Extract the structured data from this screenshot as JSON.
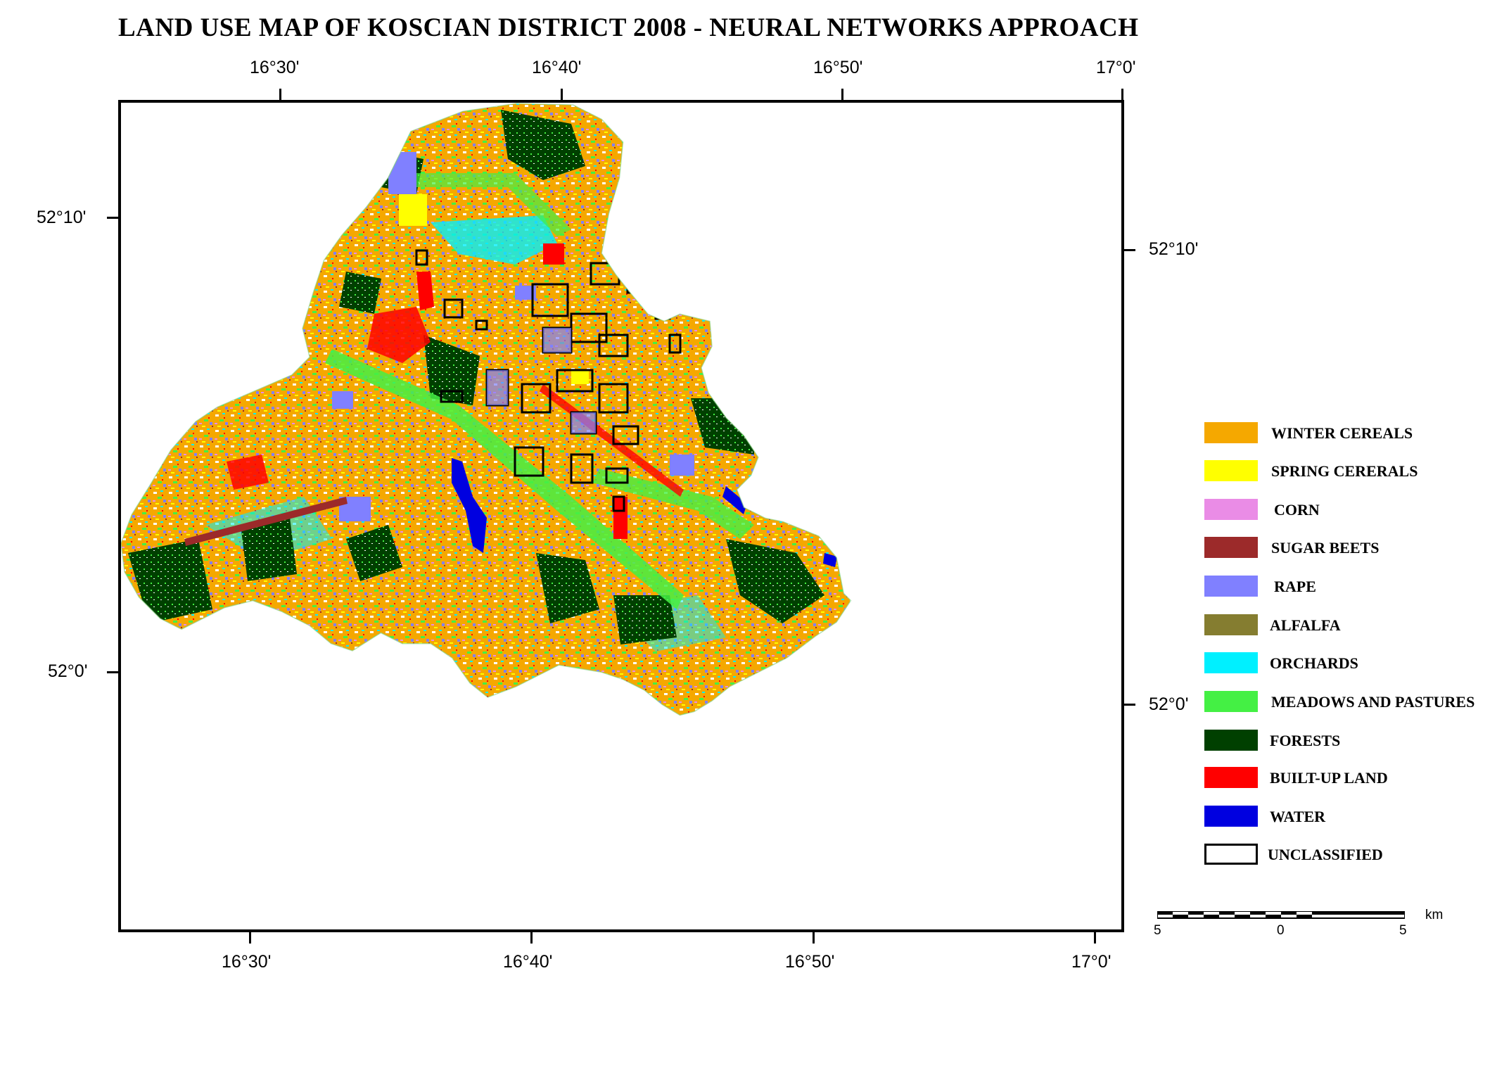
{
  "title": "LAND  USE  MAP  OF KOSCIAN  DISTRICT 2008 - NEURAL NETWORKS APPROACH",
  "top_longitudes": [
    "16°30'",
    "16°40'",
    "16°50'",
    "17°0'"
  ],
  "bottom_longitudes": [
    "16°30'",
    "16°40'",
    "16°50'",
    "17°0'"
  ],
  "left_latitudes": [
    "52°10'",
    "52°0'"
  ],
  "right_latitudes": [
    "52°10'",
    "52°0'"
  ],
  "legend": [
    {
      "label": "WINTER  CEREALS",
      "color": "#f5a800"
    },
    {
      "label": "SPRING  CERERALS",
      "color": "#ffff00"
    },
    {
      "label": "CORN",
      "color": "#ea8ce6"
    },
    {
      "label": "SUGAR  BEETS",
      "color": "#9c2a2a"
    },
    {
      "label": "RAPE",
      "color": "#8080ff"
    },
    {
      "label": "ALFALFA",
      "color": "#857d30"
    },
    {
      "label": "ORCHARDS",
      "color": "#00f0ff"
    },
    {
      "label": "MEADOWS AND PASTURES",
      "color": "#44f044"
    },
    {
      "label": "FORESTS",
      "color": "#004000"
    },
    {
      "label": "BUILT-UP  LAND",
      "color": "#ff0000"
    },
    {
      "label": "WATER",
      "color": "#0000e0"
    },
    {
      "label": "UNCLASSIFIED",
      "color": "#ffffff"
    }
  ],
  "scale": {
    "left": "5",
    "middle": "0",
    "right": "5",
    "unit": "km"
  }
}
